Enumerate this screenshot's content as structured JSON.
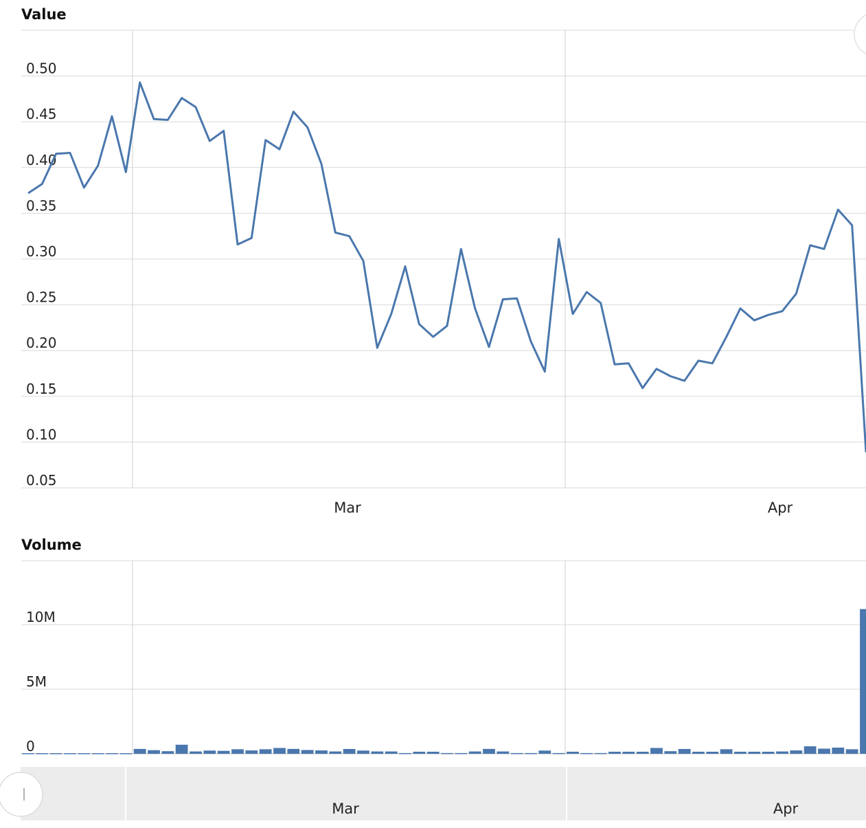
{
  "charts": [
    {
      "panel_title": "Value",
      "chart_data": {
        "type": "line",
        "ylabel": "Value",
        "xlabel": "",
        "ylim": [
          0.05,
          0.55
        ],
        "y_ticks": [
          "0.50",
          "0.45",
          "0.40",
          "0.35",
          "0.30",
          "0.25",
          "0.20",
          "0.15",
          "0.10",
          "0.05"
        ],
        "x_ticks": [
          "Mar",
          "Apr"
        ],
        "x_tick_dates": [
          "2016-03-01",
          "2016-04-01"
        ],
        "grid": true,
        "series": [
          {
            "color": "#4a77ad",
            "values": [
              0.372,
              0.382,
              0.415,
              0.416,
              0.378,
              0.402,
              0.456,
              0.395,
              0.493,
              0.453,
              0.452,
              0.476,
              0.466,
              0.429,
              0.44,
              0.316,
              0.323,
              0.43,
              0.42,
              0.461,
              0.444,
              0.404,
              0.329,
              0.325,
              0.298,
              0.203,
              0.24,
              0.292,
              0.229,
              0.215,
              0.227,
              0.311,
              0.246,
              0.204,
              0.256,
              0.257,
              0.21,
              0.177,
              0.322,
              0.24,
              0.264,
              0.252,
              0.185,
              0.186,
              0.159,
              0.18,
              0.172,
              0.167,
              0.189,
              0.186,
              0.215,
              0.246,
              0.233,
              0.239,
              0.243,
              0.262,
              0.315,
              0.311,
              0.354,
              0.337,
              0.089
            ]
          }
        ]
      }
    },
    {
      "panel_title": "Volume",
      "chart_data": {
        "type": "bar",
        "ylabel": "Volume",
        "xlabel": "",
        "ylim": [
          0,
          15000000
        ],
        "y_ticks": [
          "10M",
          "5M",
          "0"
        ],
        "x_ticks": [
          "Mar",
          "Apr"
        ],
        "grid": true,
        "series": [
          {
            "color": "#4a77ad",
            "values": [
              50000,
              50000,
              50000,
              50000,
              50000,
              50000,
              50000,
              50000,
              380000,
              280000,
              200000,
              700000,
              180000,
              250000,
              230000,
              350000,
              260000,
              350000,
              450000,
              380000,
              290000,
              260000,
              180000,
              370000,
              250000,
              180000,
              180000,
              60000,
              160000,
              160000,
              60000,
              60000,
              180000,
              380000,
              180000,
              60000,
              60000,
              250000,
              60000,
              160000,
              60000,
              60000,
              160000,
              160000,
              160000,
              450000,
              200000,
              370000,
              160000,
              160000,
              350000,
              160000,
              160000,
              160000,
              180000,
              260000,
              580000,
              400000,
              480000,
              350000,
              11200000
            ]
          }
        ]
      }
    }
  ],
  "navigator": {
    "x_ticks": [
      "Mar",
      "Apr"
    ]
  }
}
